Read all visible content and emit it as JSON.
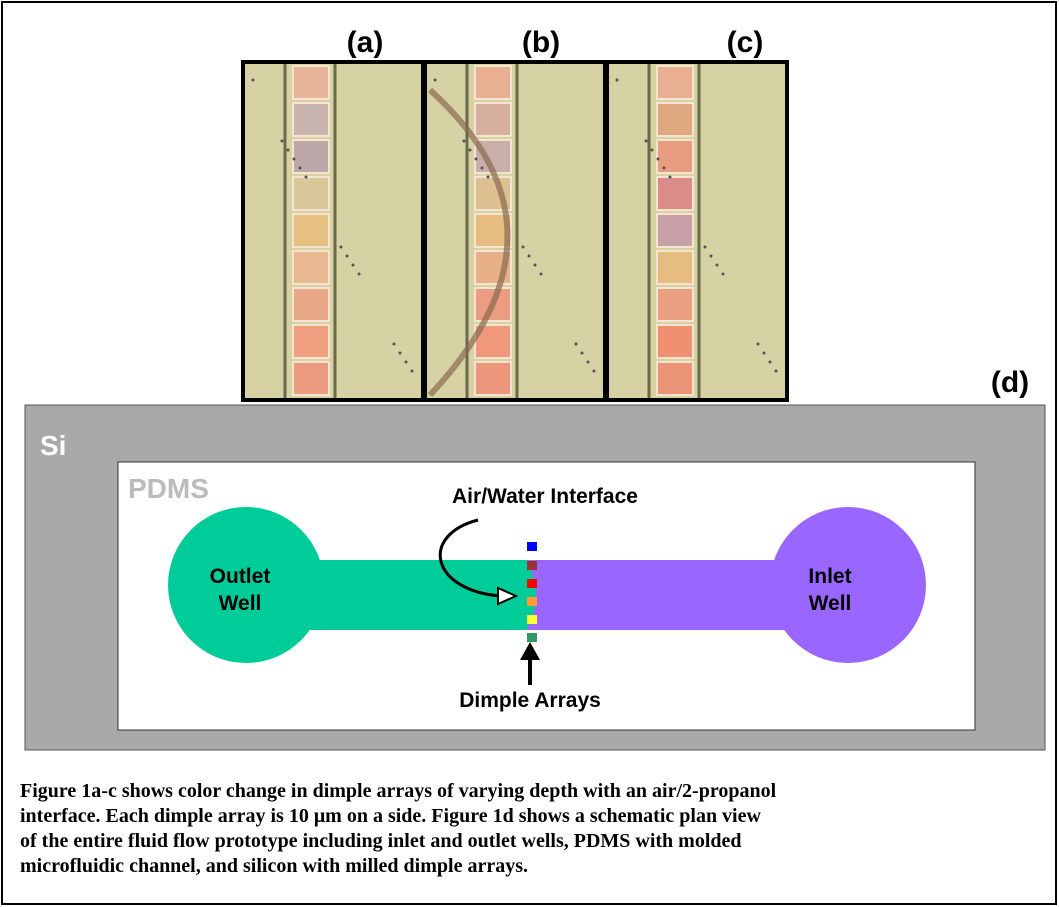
{
  "panels": {
    "a": "(a)",
    "b": "(b)",
    "c": "(c)",
    "d": "(d)"
  },
  "schematic": {
    "substrate": "Si",
    "layer": "PDMS",
    "interface": "Air/Water Interface",
    "outlet": [
      "Outlet",
      "Well"
    ],
    "inlet": [
      "Inlet",
      "Well"
    ],
    "dimples": "Dimple Arrays"
  },
  "caption": [
    "Figure 1a-c shows color change in dimple arrays of varying depth with an air/2-propanol",
    "interface.  Each dimple array is 10 μm on a side.  Figure 1d shows a schematic plan view",
    "of the entire fluid flow prototype including inlet and outlet wells, PDMS with molded",
    "microfluidic channel, and silicon with milled dimple arrays."
  ]
}
